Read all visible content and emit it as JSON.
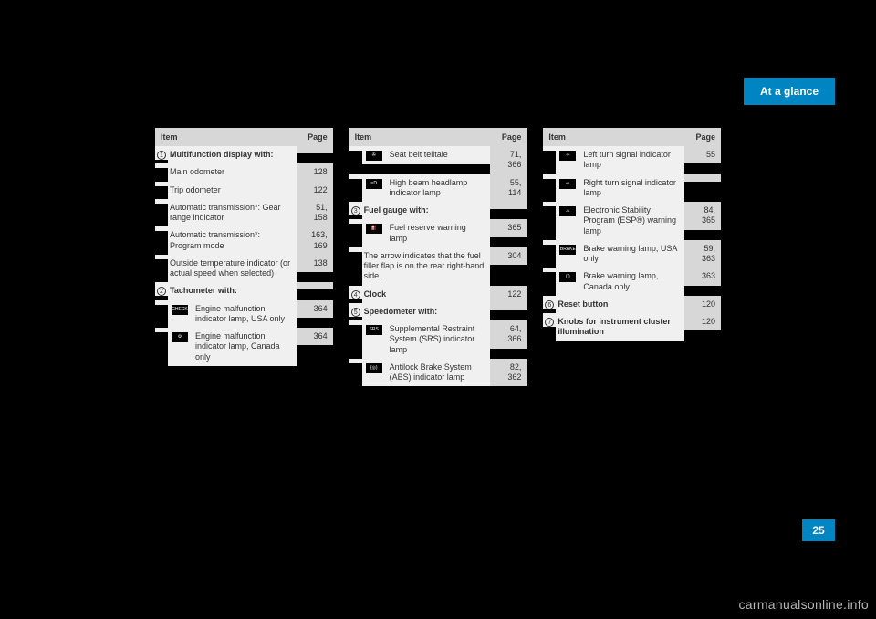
{
  "header_tab": "At a glance",
  "page_number": "25",
  "watermark": "carmanualsonline.info",
  "headers": {
    "item": "Item",
    "page": "Page"
  },
  "columns": [
    {
      "rows": [
        {
          "num": "1",
          "bold": true,
          "label": "Multifunction display with:",
          "page": ""
        },
        {
          "label": "Main odometer",
          "page": "128"
        },
        {
          "label": "Trip odometer",
          "page": "122"
        },
        {
          "label": "Automatic transmission*: Gear range indicator",
          "page": "51, 158"
        },
        {
          "label": "Automatic transmission*: Program mode",
          "page": "163, 169"
        },
        {
          "label": "Outside temperature indicator (or actual speed when selected)",
          "page": "138"
        },
        {
          "num": "2",
          "bold": true,
          "label": "Tachometer with:",
          "page": ""
        },
        {
          "icon": "CHECK ENGINE",
          "indent": true,
          "label": "Engine malfunction indicator lamp, USA only",
          "page": "364"
        },
        {
          "icon": "⚙",
          "indent": true,
          "label": "Engine malfunction indicator lamp, Canada only",
          "page": "364"
        }
      ]
    },
    {
      "rows": [
        {
          "icon": "✇",
          "indent": true,
          "label": "Seat belt telltale",
          "page": "71, 366"
        },
        {
          "icon": "≡D",
          "indent": true,
          "label": "High beam headlamp indicator lamp",
          "page": "55, 114"
        },
        {
          "num": "3",
          "bold": true,
          "label": "Fuel gauge with:",
          "page": ""
        },
        {
          "icon": "⛽",
          "indent": true,
          "label": "Fuel reserve warning lamp",
          "page": "365"
        },
        {
          "label": "The arrow indicates that the fuel filler flap is on the rear right-hand side.",
          "page": "304"
        },
        {
          "num": "4",
          "bold": true,
          "label": "Clock",
          "page": "122"
        },
        {
          "num": "5",
          "bold": true,
          "label": "Speedometer with:",
          "page": ""
        },
        {
          "icon": "SRS",
          "indent": true,
          "label": "Supplemental Restraint System (SRS) indicator lamp",
          "page": "64, 366"
        },
        {
          "icon": "(◎)",
          "indent": true,
          "label": "Antilock Brake System (ABS) indicator lamp",
          "page": "82, 362"
        }
      ]
    },
    {
      "rows": [
        {
          "icon": "⇦",
          "indent": true,
          "label": "Left turn signal indicator lamp",
          "page": "55"
        },
        {
          "icon": "⇨",
          "indent": true,
          "label": "Right turn signal indicator lamp",
          "page": ""
        },
        {
          "icon": "⚠",
          "indent": true,
          "label": "Electronic Stability Program (ESP®) warning lamp",
          "page": "84, 365"
        },
        {
          "icon": "BRAKE",
          "indent": true,
          "label": "Brake warning lamp, USA only",
          "page": "59, 363"
        },
        {
          "icon": "(!)",
          "indent": true,
          "label": "Brake warning lamp, Canada only",
          "page": "363"
        },
        {
          "num": "6",
          "bold": true,
          "label": "Reset button",
          "page": "120"
        },
        {
          "num": "7",
          "bold": true,
          "label": "Knobs for instrument cluster illumination",
          "page": "120"
        }
      ]
    }
  ]
}
